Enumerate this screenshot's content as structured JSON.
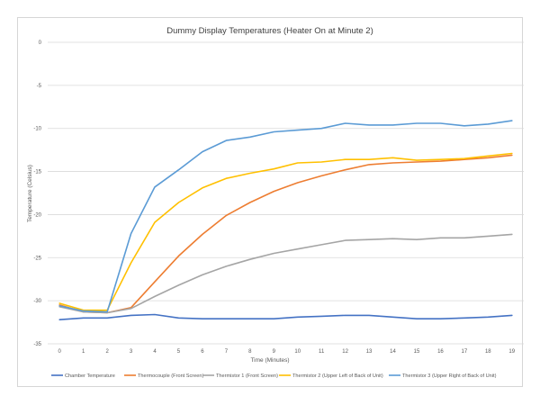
{
  "chart_data": {
    "type": "line",
    "title": "Dummy Display Temperatures (Heater On at Minute 2)",
    "xlabel": "Time (Minutes)",
    "ylabel": "Temperature (Celsius)",
    "x": [
      0,
      1,
      2,
      3,
      4,
      5,
      6,
      7,
      8,
      9,
      10,
      11,
      12,
      13,
      14,
      15,
      16,
      17,
      18,
      19
    ],
    "ylim": [
      -35,
      0
    ],
    "yticks": [
      0,
      -5,
      -10,
      -15,
      -20,
      -25,
      -30,
      -35
    ],
    "grid": true,
    "legend_position": "bottom",
    "series": [
      {
        "name": "Chamber Temperature",
        "color": "#4472c4",
        "values": [
          -32.2,
          -32.0,
          -32.0,
          -31.7,
          -31.6,
          -32.0,
          -32.1,
          -32.1,
          -32.1,
          -32.1,
          -31.9,
          -31.8,
          -31.7,
          -31.7,
          -31.9,
          -32.1,
          -32.1,
          -32.0,
          -31.9,
          -31.7
        ]
      },
      {
        "name": "Thermocouple (Front Screen)",
        "color": "#ed7d31",
        "values": [
          -30.5,
          -31.3,
          -31.4,
          -30.8,
          -27.8,
          -24.8,
          -22.3,
          -20.1,
          -18.6,
          -17.3,
          -16.3,
          -15.5,
          -14.8,
          -14.2,
          -14.0,
          -13.9,
          -13.8,
          -13.6,
          -13.4,
          -13.1
        ]
      },
      {
        "name": "Thermistor 1 (Front Screen)",
        "color": "#a5a5a5",
        "values": [
          -30.7,
          -31.3,
          -31.4,
          -30.9,
          -29.5,
          -28.2,
          -27.0,
          -26.0,
          -25.2,
          -24.5,
          -24.0,
          -23.5,
          -23.0,
          -22.9,
          -22.8,
          -22.9,
          -22.7,
          -22.7,
          -22.5,
          -22.3
        ]
      },
      {
        "name": "Thermistor 2 (Upper Left of Back of Unit)",
        "color": "#ffc000",
        "values": [
          -30.3,
          -31.1,
          -31.1,
          -25.6,
          -20.9,
          -18.6,
          -16.9,
          -15.8,
          -15.2,
          -14.7,
          -14.0,
          -13.9,
          -13.6,
          -13.6,
          -13.4,
          -13.7,
          -13.6,
          -13.5,
          -13.2,
          -12.9
        ]
      },
      {
        "name": "Thermistor 3 (Upper Right of Back of Unit)",
        "color": "#5b9bd5",
        "values": [
          -30.6,
          -31.2,
          -31.3,
          -22.2,
          -16.8,
          -14.8,
          -12.7,
          -11.4,
          -11.0,
          -10.4,
          -10.2,
          -10.0,
          -9.4,
          -9.6,
          -9.6,
          -9.4,
          -9.4,
          -9.7,
          -9.5,
          -9.1
        ]
      }
    ]
  }
}
